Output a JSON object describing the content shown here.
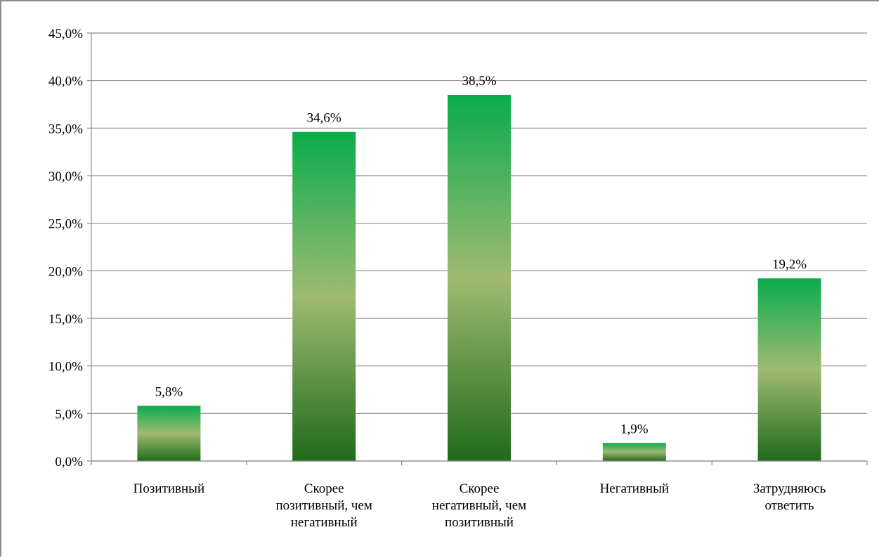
{
  "chart_data": {
    "type": "bar",
    "categories": [
      [
        "Позитивный"
      ],
      [
        "Скорее",
        "позитивный, чем",
        "негативный"
      ],
      [
        "Скорее",
        "негативный, чем",
        "позитивный"
      ],
      [
        "Негативный"
      ],
      [
        "Затрудняюсь",
        "ответить"
      ]
    ],
    "values": [
      5.8,
      34.6,
      38.5,
      1.9,
      19.2
    ],
    "data_labels": [
      "5,8%",
      "34,6%",
      "38,5%",
      "1,9%",
      "19,2%"
    ],
    "ylim": [
      0,
      45
    ],
    "ytick_values": [
      0,
      5,
      10,
      15,
      20,
      25,
      30,
      35,
      40,
      45
    ],
    "ytick_labels": [
      "0,0%",
      "5,0%",
      "10,0%",
      "15,0%",
      "20,0%",
      "25,0%",
      "30,0%",
      "35,0%",
      "40,0%",
      "45,0%"
    ],
    "title": "",
    "xlabel": "",
    "ylabel": "",
    "grid": true,
    "legend": "none",
    "colors": {
      "bar_top": "#0aac4c",
      "bar_mid": "#9fba72",
      "bar_bottom": "#1f6b1a",
      "grid": "#8c8c8c"
    }
  }
}
